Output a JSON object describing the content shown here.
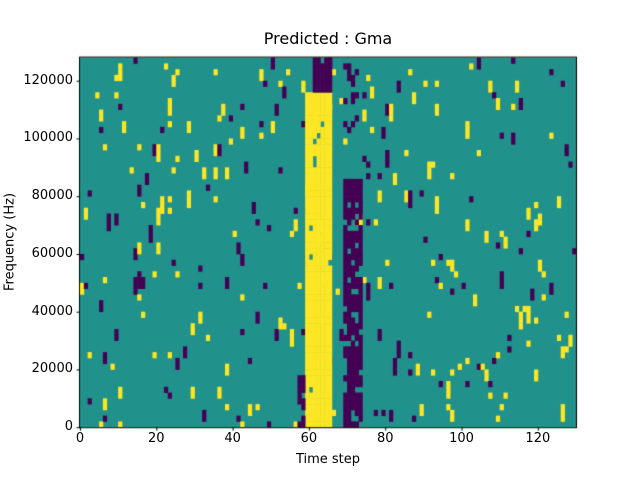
{
  "figure": {
    "background": "#ffffff"
  },
  "chart_data": {
    "type": "heatmap",
    "title": "Predicted : Gma",
    "xlabel": "Time step",
    "ylabel": "Frequency (Hz)",
    "xlim": [
      0,
      130
    ],
    "ylim": [
      0,
      128000
    ],
    "x_ticks": [
      0,
      20,
      40,
      60,
      80,
      100,
      120
    ],
    "y_ticks": [
      0,
      20000,
      40000,
      60000,
      80000,
      100000,
      120000
    ],
    "grid": {
      "cols": 130,
      "rows": 64,
      "cell_freq_hz": 2000
    },
    "colors": {
      "background_class": "#21918c",
      "yellow_class": "#fde725",
      "purple_class": "#440154",
      "axis": "#000000",
      "text": "#000000"
    },
    "features": {
      "bands": [
        {
          "label": "solid-yellow-vertical-band",
          "color": "yellow",
          "col_start": 59,
          "col_end": 65,
          "freq_start_hz": 0,
          "freq_end_hz": 116000,
          "density": 0.97
        },
        {
          "label": "purple-cap-above-yellow-band",
          "color": "purple",
          "col_start": 61,
          "col_end": 65,
          "freq_start_hz": 116000,
          "freq_end_hz": 128000,
          "density": 0.8
        },
        {
          "label": "purple-vertical-band",
          "color": "purple",
          "col_start": 69,
          "col_end": 73,
          "freq_start_hz": 0,
          "freq_end_hz": 86000,
          "density": 0.78
        },
        {
          "label": "purple-band-top-fragment",
          "color": "purple",
          "col_start": 69,
          "col_end": 72,
          "freq_start_hz": 102000,
          "freq_end_hz": 128000,
          "density": 0.45
        },
        {
          "label": "purple-streak-left-of-yellow-band",
          "color": "purple",
          "col_start": 57,
          "col_end": 58,
          "freq_start_hz": 0,
          "freq_end_hz": 20000,
          "density": 0.5
        }
      ],
      "noise": {
        "seed": 1337,
        "yellow_start_prob": 0.02,
        "purple_start_prob": 0.016,
        "run_2_prob": 0.3,
        "run_3_prob": 0.08,
        "description": "sparse scattered 1-3 cell vertical speckles of yellow and purple classes over teal background"
      }
    }
  }
}
